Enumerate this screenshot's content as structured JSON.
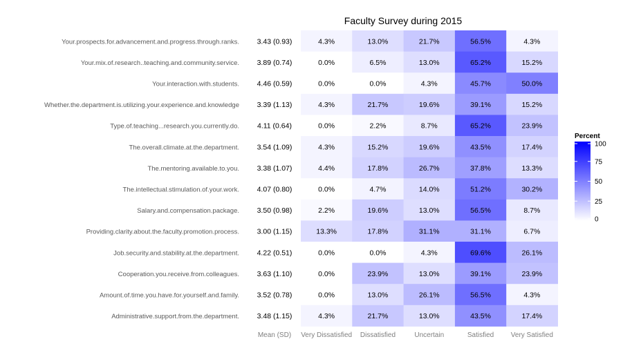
{
  "chart_data": {
    "type": "heatmap",
    "title": "Faculty Survey during 2015",
    "xlabel": "",
    "ylabel": "",
    "mean_sd_header": "Mean (SD)",
    "columns": [
      "Very Dissatisfied",
      "Dissatisfied",
      "Uncertain",
      "Satisfied",
      "Very Satisfied"
    ],
    "rows": [
      {
        "label": "Your.prospects.for.advancement.and.progress.through.ranks.",
        "mean_sd": "3.43 (0.93)",
        "values": [
          4.3,
          13.0,
          21.7,
          56.5,
          4.3
        ],
        "display": [
          "4.3%",
          "13.0%",
          "21.7%",
          "56.5%",
          "4.3%"
        ]
      },
      {
        "label": "Your.mix.of.research..teaching.and.community.service.",
        "mean_sd": "3.89 (0.74)",
        "values": [
          0.0,
          6.5,
          13.0,
          65.2,
          15.2
        ],
        "display": [
          "0.0%",
          "6.5%",
          "13.0%",
          "65.2%",
          "15.2%"
        ]
      },
      {
        "label": "Your.interaction.with.students.",
        "mean_sd": "4.46 (0.59)",
        "values": [
          0.0,
          0.0,
          4.3,
          45.7,
          50.0
        ],
        "display": [
          "0.0%",
          "0.0%",
          "4.3%",
          "45.7%",
          "50.0%"
        ]
      },
      {
        "label": "Whether.the.department.is.utilizing.your.experience.and.knowledge",
        "mean_sd": "3.39 (1.13)",
        "values": [
          4.3,
          21.7,
          19.6,
          39.1,
          15.2
        ],
        "display": [
          "4.3%",
          "21.7%",
          "19.6%",
          "39.1%",
          "15.2%"
        ]
      },
      {
        "label": "Type.of.teaching...research.you.currently.do.",
        "mean_sd": "4.11 (0.64)",
        "values": [
          0.0,
          2.2,
          8.7,
          65.2,
          23.9
        ],
        "display": [
          "0.0%",
          "2.2%",
          "8.7%",
          "65.2%",
          "23.9%"
        ]
      },
      {
        "label": "The.overall.climate.at.the.department.",
        "mean_sd": "3.54 (1.09)",
        "values": [
          4.3,
          15.2,
          19.6,
          43.5,
          17.4
        ],
        "display": [
          "4.3%",
          "15.2%",
          "19.6%",
          "43.5%",
          "17.4%"
        ]
      },
      {
        "label": "The.mentoring.available.to.you.",
        "mean_sd": "3.38 (1.07)",
        "values": [
          4.4,
          17.8,
          26.7,
          37.8,
          13.3
        ],
        "display": [
          "4.4%",
          "17.8%",
          "26.7%",
          "37.8%",
          "13.3%"
        ]
      },
      {
        "label": "The.intellectual.stimulation.of.your.work.",
        "mean_sd": "4.07 (0.80)",
        "values": [
          0.0,
          4.7,
          14.0,
          51.2,
          30.2
        ],
        "display": [
          "0.0%",
          "4.7%",
          "14.0%",
          "51.2%",
          "30.2%"
        ]
      },
      {
        "label": "Salary.and.compensation.package.",
        "mean_sd": "3.50 (0.98)",
        "values": [
          2.2,
          19.6,
          13.0,
          56.5,
          8.7
        ],
        "display": [
          "2.2%",
          "19.6%",
          "13.0%",
          "56.5%",
          "8.7%"
        ]
      },
      {
        "label": "Providing.clarity.about.the.faculty.promotion.process.",
        "mean_sd": "3.00 (1.15)",
        "values": [
          13.3,
          17.8,
          31.1,
          31.1,
          6.7
        ],
        "display": [
          "13.3%",
          "17.8%",
          "31.1%",
          "31.1%",
          "6.7%"
        ]
      },
      {
        "label": "Job.security.and.stability.at.the.department.",
        "mean_sd": "4.22 (0.51)",
        "values": [
          0.0,
          0.0,
          4.3,
          69.6,
          26.1
        ],
        "display": [
          "0.0%",
          "0.0%",
          "4.3%",
          "69.6%",
          "26.1%"
        ]
      },
      {
        "label": "Cooperation.you.receive.from.colleagues.",
        "mean_sd": "3.63 (1.10)",
        "values": [
          0.0,
          23.9,
          13.0,
          39.1,
          23.9
        ],
        "display": [
          "0.0%",
          "23.9%",
          "13.0%",
          "39.1%",
          "23.9%"
        ]
      },
      {
        "label": "Amount.of.time.you.have.for.yourself.and.family.",
        "mean_sd": "3.52 (0.78)",
        "values": [
          0.0,
          13.0,
          26.1,
          56.5,
          4.3
        ],
        "display": [
          "0.0%",
          "13.0%",
          "26.1%",
          "56.5%",
          "4.3%"
        ]
      },
      {
        "label": "Administrative.support.from.the.department.",
        "mean_sd": "3.48 (1.15)",
        "values": [
          4.3,
          21.7,
          13.0,
          43.5,
          17.4
        ],
        "display": [
          "4.3%",
          "21.7%",
          "13.0%",
          "43.5%",
          "17.4%"
        ]
      }
    ],
    "legend": {
      "title": "Percent",
      "ticks": [
        "100",
        "75",
        "50",
        "25",
        "0"
      ],
      "range": [
        0,
        100
      ],
      "placement": "right"
    },
    "colors": {
      "low": "#ffffff",
      "high": "#0000ff"
    },
    "grid": false
  }
}
